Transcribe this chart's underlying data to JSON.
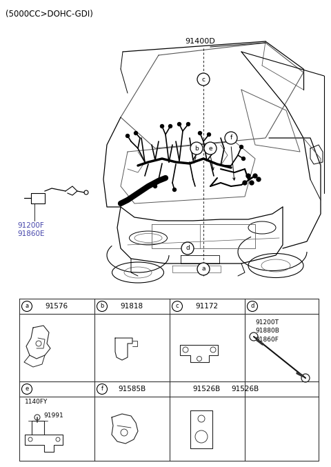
{
  "title_text": "(5000CC>DOHC-GDI)",
  "label_91400D": "91400D",
  "side_label1": "91200F",
  "side_label2": "91860E",
  "bg_color": "#ffffff",
  "line_color": "#000000",
  "text_color": "#000000",
  "gray_color": "#555555",
  "table": {
    "row1_headers": [
      {
        "letter": "a",
        "part": "91576"
      },
      {
        "letter": "b",
        "part": "91818"
      },
      {
        "letter": "c",
        "part": "91172"
      },
      {
        "letter": "d",
        "part": ""
      }
    ],
    "row1_d_parts": "91200T\n91880B\n91860F",
    "row2_headers": [
      {
        "letter": "e",
        "part": ""
      },
      {
        "letter": "f",
        "part": "91585B"
      },
      {
        "letter": "",
        "part": "91526B"
      },
      {
        "letter": "",
        "part": ""
      }
    ],
    "row2_e_labels": [
      "1140FY",
      "91991"
    ]
  }
}
